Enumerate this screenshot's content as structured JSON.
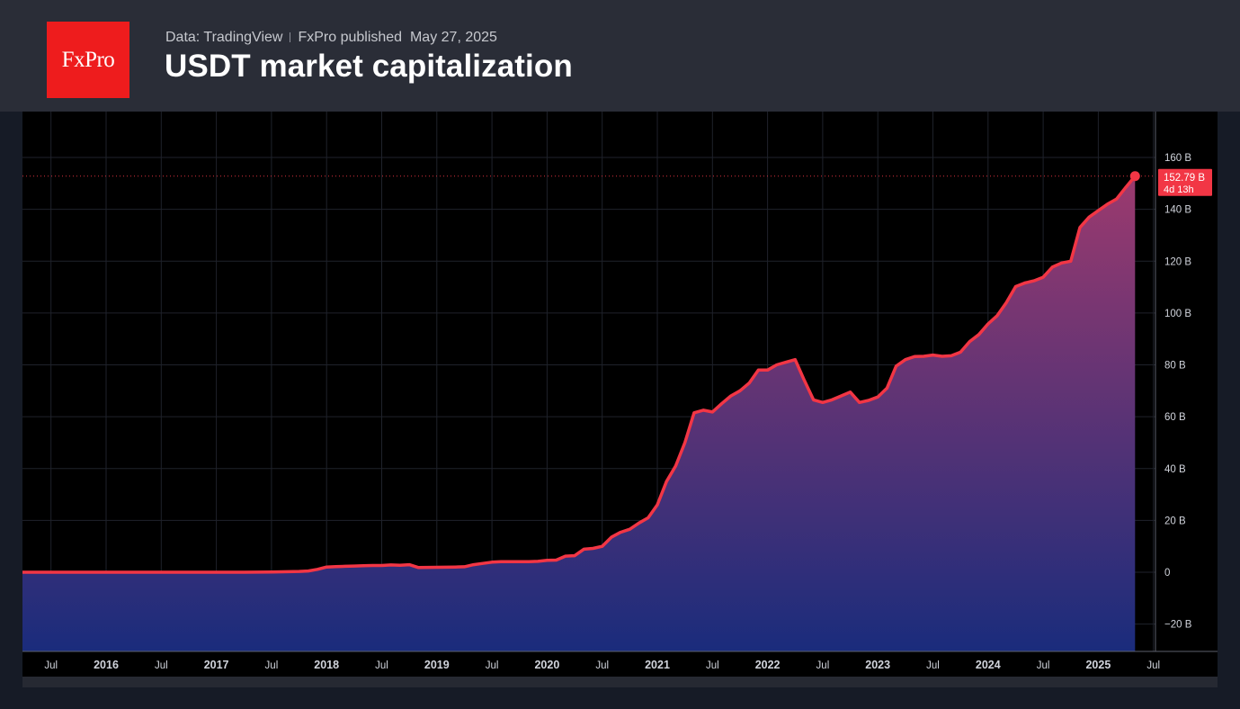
{
  "header": {
    "logo_text": "FxPro",
    "data_source": "Data: TradingView",
    "publisher": "FxPro published",
    "date": "May 27, 2025",
    "title": "USDT market capitalization"
  },
  "colors": {
    "line": "#f23645",
    "fill_top": "#9c3a6e",
    "fill_bottom": "#1a2c7c",
    "badge": "#f23645"
  },
  "chart_data": {
    "type": "area",
    "title": "USDT market capitalization",
    "xlabel": "",
    "ylabel": "",
    "x_ticks": [
      "Jul",
      "2016",
      "Jul",
      "2017",
      "Jul",
      "2018",
      "Jul",
      "2019",
      "Jul",
      "2020",
      "Jul",
      "2021",
      "Jul",
      "2022",
      "Jul",
      "2023",
      "Jul",
      "2024",
      "Jul",
      "2025",
      "Jul"
    ],
    "y_ticks": [
      "160 B",
      "140 B",
      "120 B",
      "100 B",
      "80 B",
      "60 B",
      "40 B",
      "20 B",
      "0",
      "−20 B"
    ],
    "ylim": [
      -30,
      170
    ],
    "xlim": [
      "2015-05",
      "2025-09"
    ],
    "grid": true,
    "last_value_label": "152.79 B",
    "countdown_label": "4d 13h",
    "series": [
      {
        "x": [
          "2015-05",
          "2016-01",
          "2016-07",
          "2017-01",
          "2017-04",
          "2017-07",
          "2017-10",
          "2017-11",
          "2017-12",
          "2018-01",
          "2018-02",
          "2018-03",
          "2018-04",
          "2018-05",
          "2018-06",
          "2018-07",
          "2018-08",
          "2018-09",
          "2018-10",
          "2018-11",
          "2019-01",
          "2019-03",
          "2019-04",
          "2019-05",
          "2019-06",
          "2019-07",
          "2019-08",
          "2019-09",
          "2019-10",
          "2019-11",
          "2019-12",
          "2020-01",
          "2020-02",
          "2020-03",
          "2020-04",
          "2020-05",
          "2020-06",
          "2020-07",
          "2020-08",
          "2020-09",
          "2020-10",
          "2020-11",
          "2020-12",
          "2021-01",
          "2021-02",
          "2021-03",
          "2021-04",
          "2021-05",
          "2021-06",
          "2021-07",
          "2021-08",
          "2021-09",
          "2021-10",
          "2021-11",
          "2021-12",
          "2022-01",
          "2022-02",
          "2022-03",
          "2022-04",
          "2022-05",
          "2022-06",
          "2022-07",
          "2022-08",
          "2022-09",
          "2022-10",
          "2022-11",
          "2022-12",
          "2023-01",
          "2023-02",
          "2023-03",
          "2023-04",
          "2023-05",
          "2023-06",
          "2023-07",
          "2023-08",
          "2023-09",
          "2023-10",
          "2023-11",
          "2023-12",
          "2024-01",
          "2024-02",
          "2024-03",
          "2024-04",
          "2024-05",
          "2024-06",
          "2024-07",
          "2024-08",
          "2024-09",
          "2024-10",
          "2024-11",
          "2024-12",
          "2025-01",
          "2025-02",
          "2025-03",
          "2025-04",
          "2025-05"
        ],
        "y": [
          0.0,
          0.0,
          0.0,
          0.0,
          0.0,
          0.1,
          0.3,
          0.5,
          1.1,
          2.0,
          2.2,
          2.3,
          2.4,
          2.5,
          2.6,
          2.6,
          2.8,
          2.7,
          2.9,
          1.8,
          1.9,
          2.0,
          2.1,
          2.9,
          3.4,
          3.9,
          4.1,
          4.1,
          4.1,
          4.1,
          4.2,
          4.6,
          4.7,
          6.2,
          6.4,
          8.9,
          9.2,
          10.0,
          13.5,
          15.4,
          16.6,
          19.0,
          21.0,
          26.0,
          35.0,
          41.0,
          50.0,
          61.5,
          62.5,
          61.8,
          65.0,
          68.0,
          70.0,
          73.0,
          78.0,
          78.0,
          80.0,
          81.0,
          82.0,
          74.0,
          66.5,
          65.5,
          66.5,
          68.0,
          69.5,
          65.5,
          66.3,
          67.6,
          71.0,
          79.5,
          82.0,
          83.2,
          83.3,
          83.8,
          83.3,
          83.5,
          84.9,
          89.0,
          91.7,
          95.8,
          99.0,
          104.0,
          110.2,
          111.6,
          112.4,
          113.8,
          117.7,
          119.3,
          120.0,
          133.0,
          137.0,
          139.5,
          142.0,
          144.0,
          148.5,
          152.79
        ]
      }
    ]
  }
}
